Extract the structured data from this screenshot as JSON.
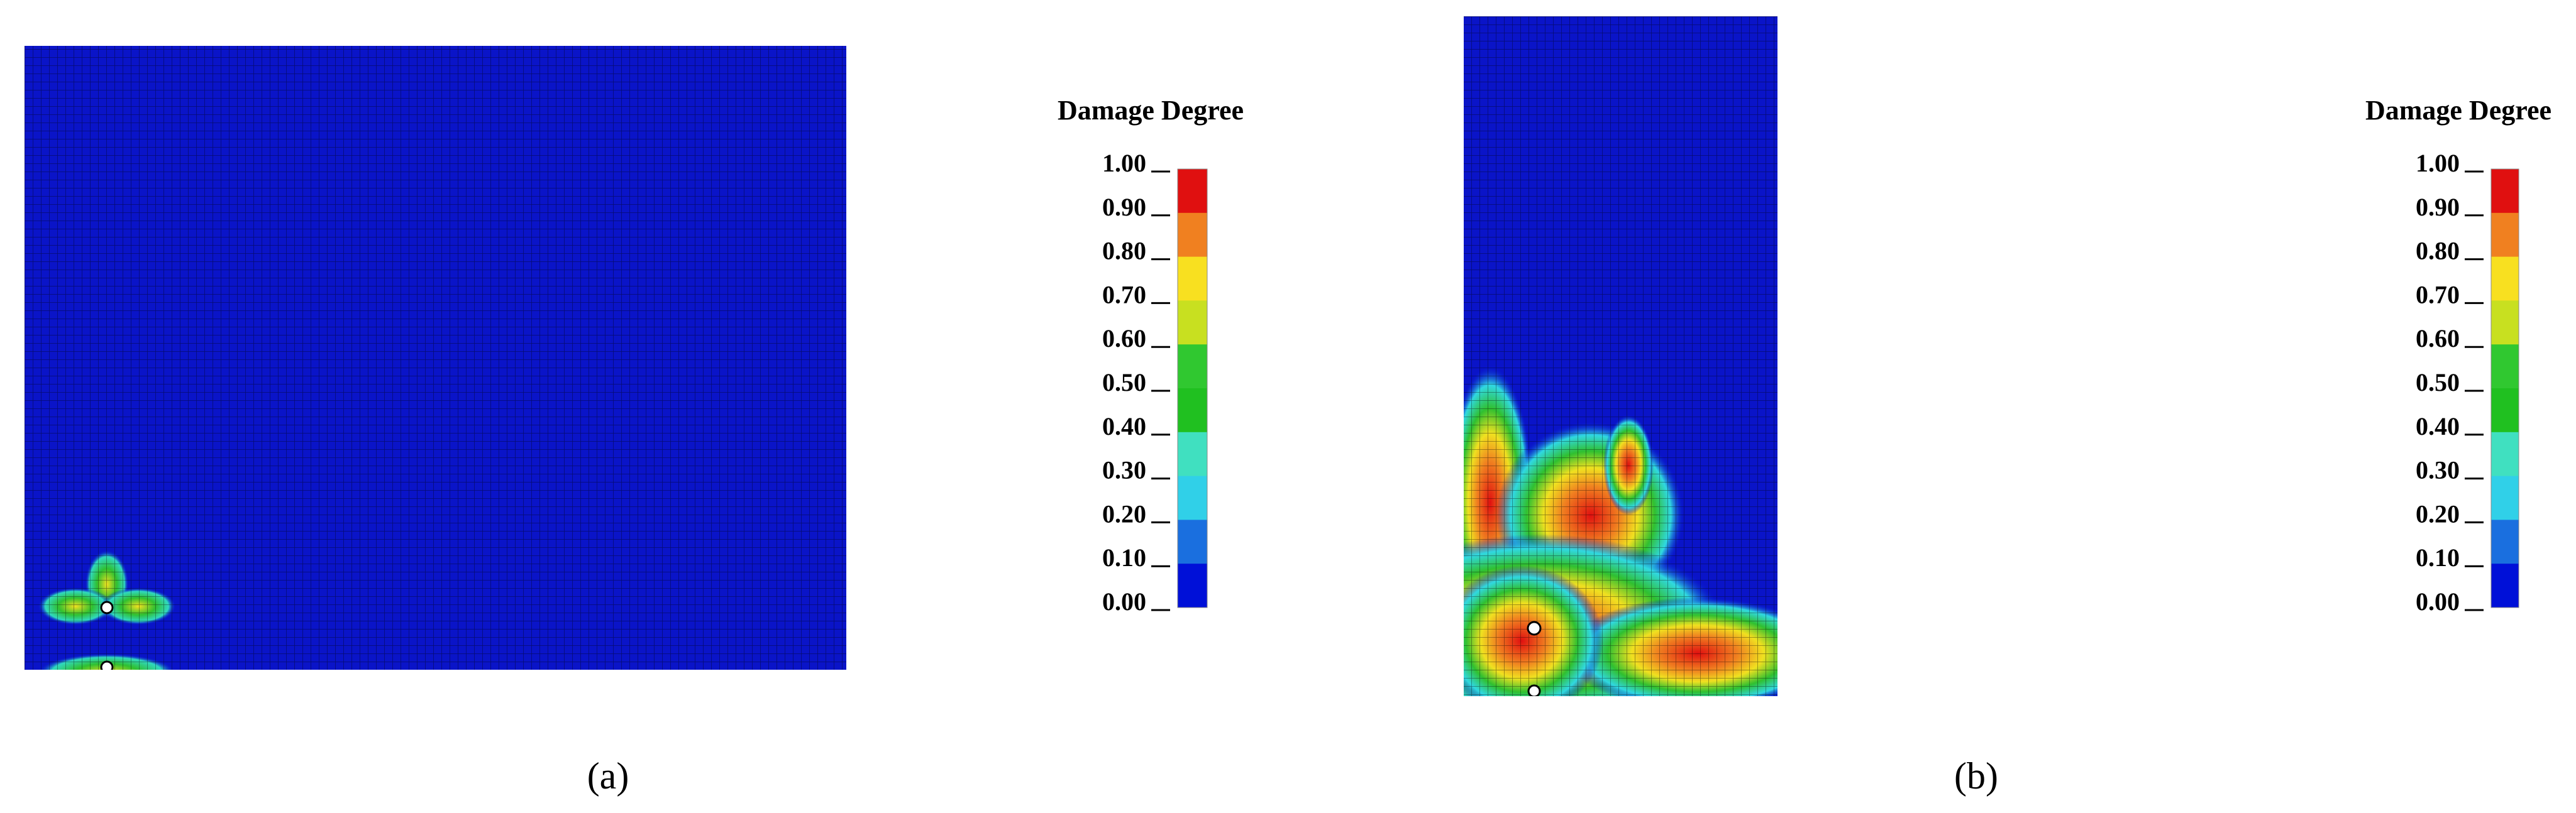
{
  "panels": [
    {
      "label": "(a)",
      "legend": {
        "title": "Damage Degree",
        "ticks": [
          "1.00",
          "0.90",
          "0.80",
          "0.70",
          "0.60",
          "0.50",
          "0.40",
          "0.30",
          "0.20",
          "0.10",
          "0.00"
        ]
      }
    },
    {
      "label": "(b)",
      "legend": {
        "title": "Damage Degree",
        "ticks": [
          "1.00",
          "0.90",
          "0.80",
          "0.70",
          "0.60",
          "0.50",
          "0.40",
          "0.30",
          "0.20",
          "0.10",
          "0.00"
        ]
      }
    }
  ]
}
